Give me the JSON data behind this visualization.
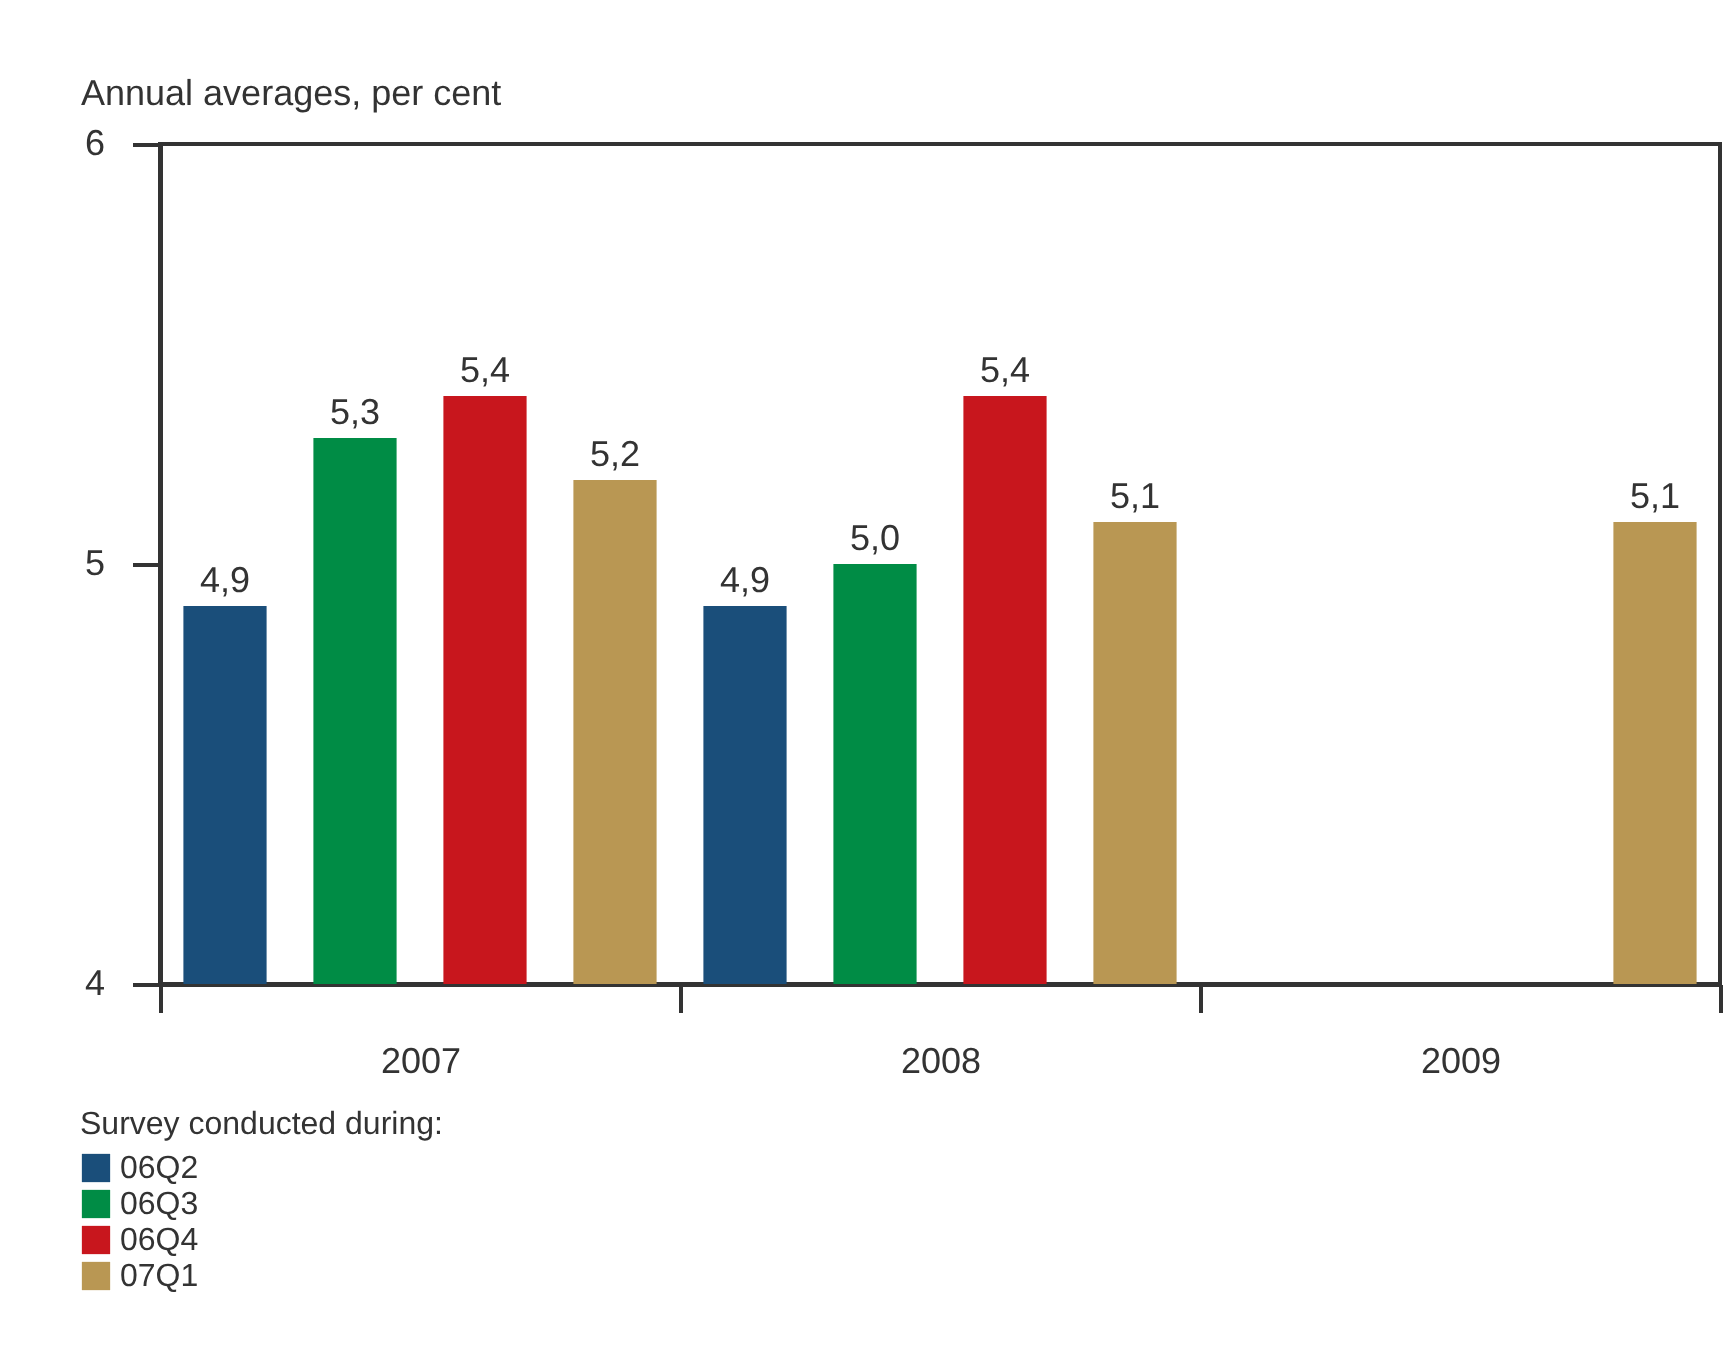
{
  "chart_data": {
    "type": "bar",
    "ylabel": "Annual averages, per cent",
    "legend_title": "Survey conducted during:",
    "categories": [
      "2007",
      "2008",
      "2009"
    ],
    "series": [
      {
        "name": "06Q2",
        "color": "#1a4e7a",
        "values": [
          4.9,
          4.9,
          null
        ],
        "value_labels": [
          "4,9",
          "4,9",
          null
        ]
      },
      {
        "name": "06Q3",
        "color": "#008c45",
        "values": [
          5.3,
          5.0,
          null
        ],
        "value_labels": [
          "5,3",
          "5,0",
          null
        ]
      },
      {
        "name": "06Q4",
        "color": "#c8161d",
        "values": [
          5.4,
          5.4,
          null
        ],
        "value_labels": [
          "5,4",
          "5,4",
          null
        ]
      },
      {
        "name": "07Q1",
        "color": "#b99753",
        "values": [
          5.2,
          5.1,
          5.1
        ],
        "value_labels": [
          "5,2",
          "5,1",
          "5,1"
        ]
      }
    ],
    "ylim": [
      4,
      6
    ],
    "yticks": [
      4,
      5,
      6
    ],
    "grid": false,
    "legend": "bottom left"
  }
}
